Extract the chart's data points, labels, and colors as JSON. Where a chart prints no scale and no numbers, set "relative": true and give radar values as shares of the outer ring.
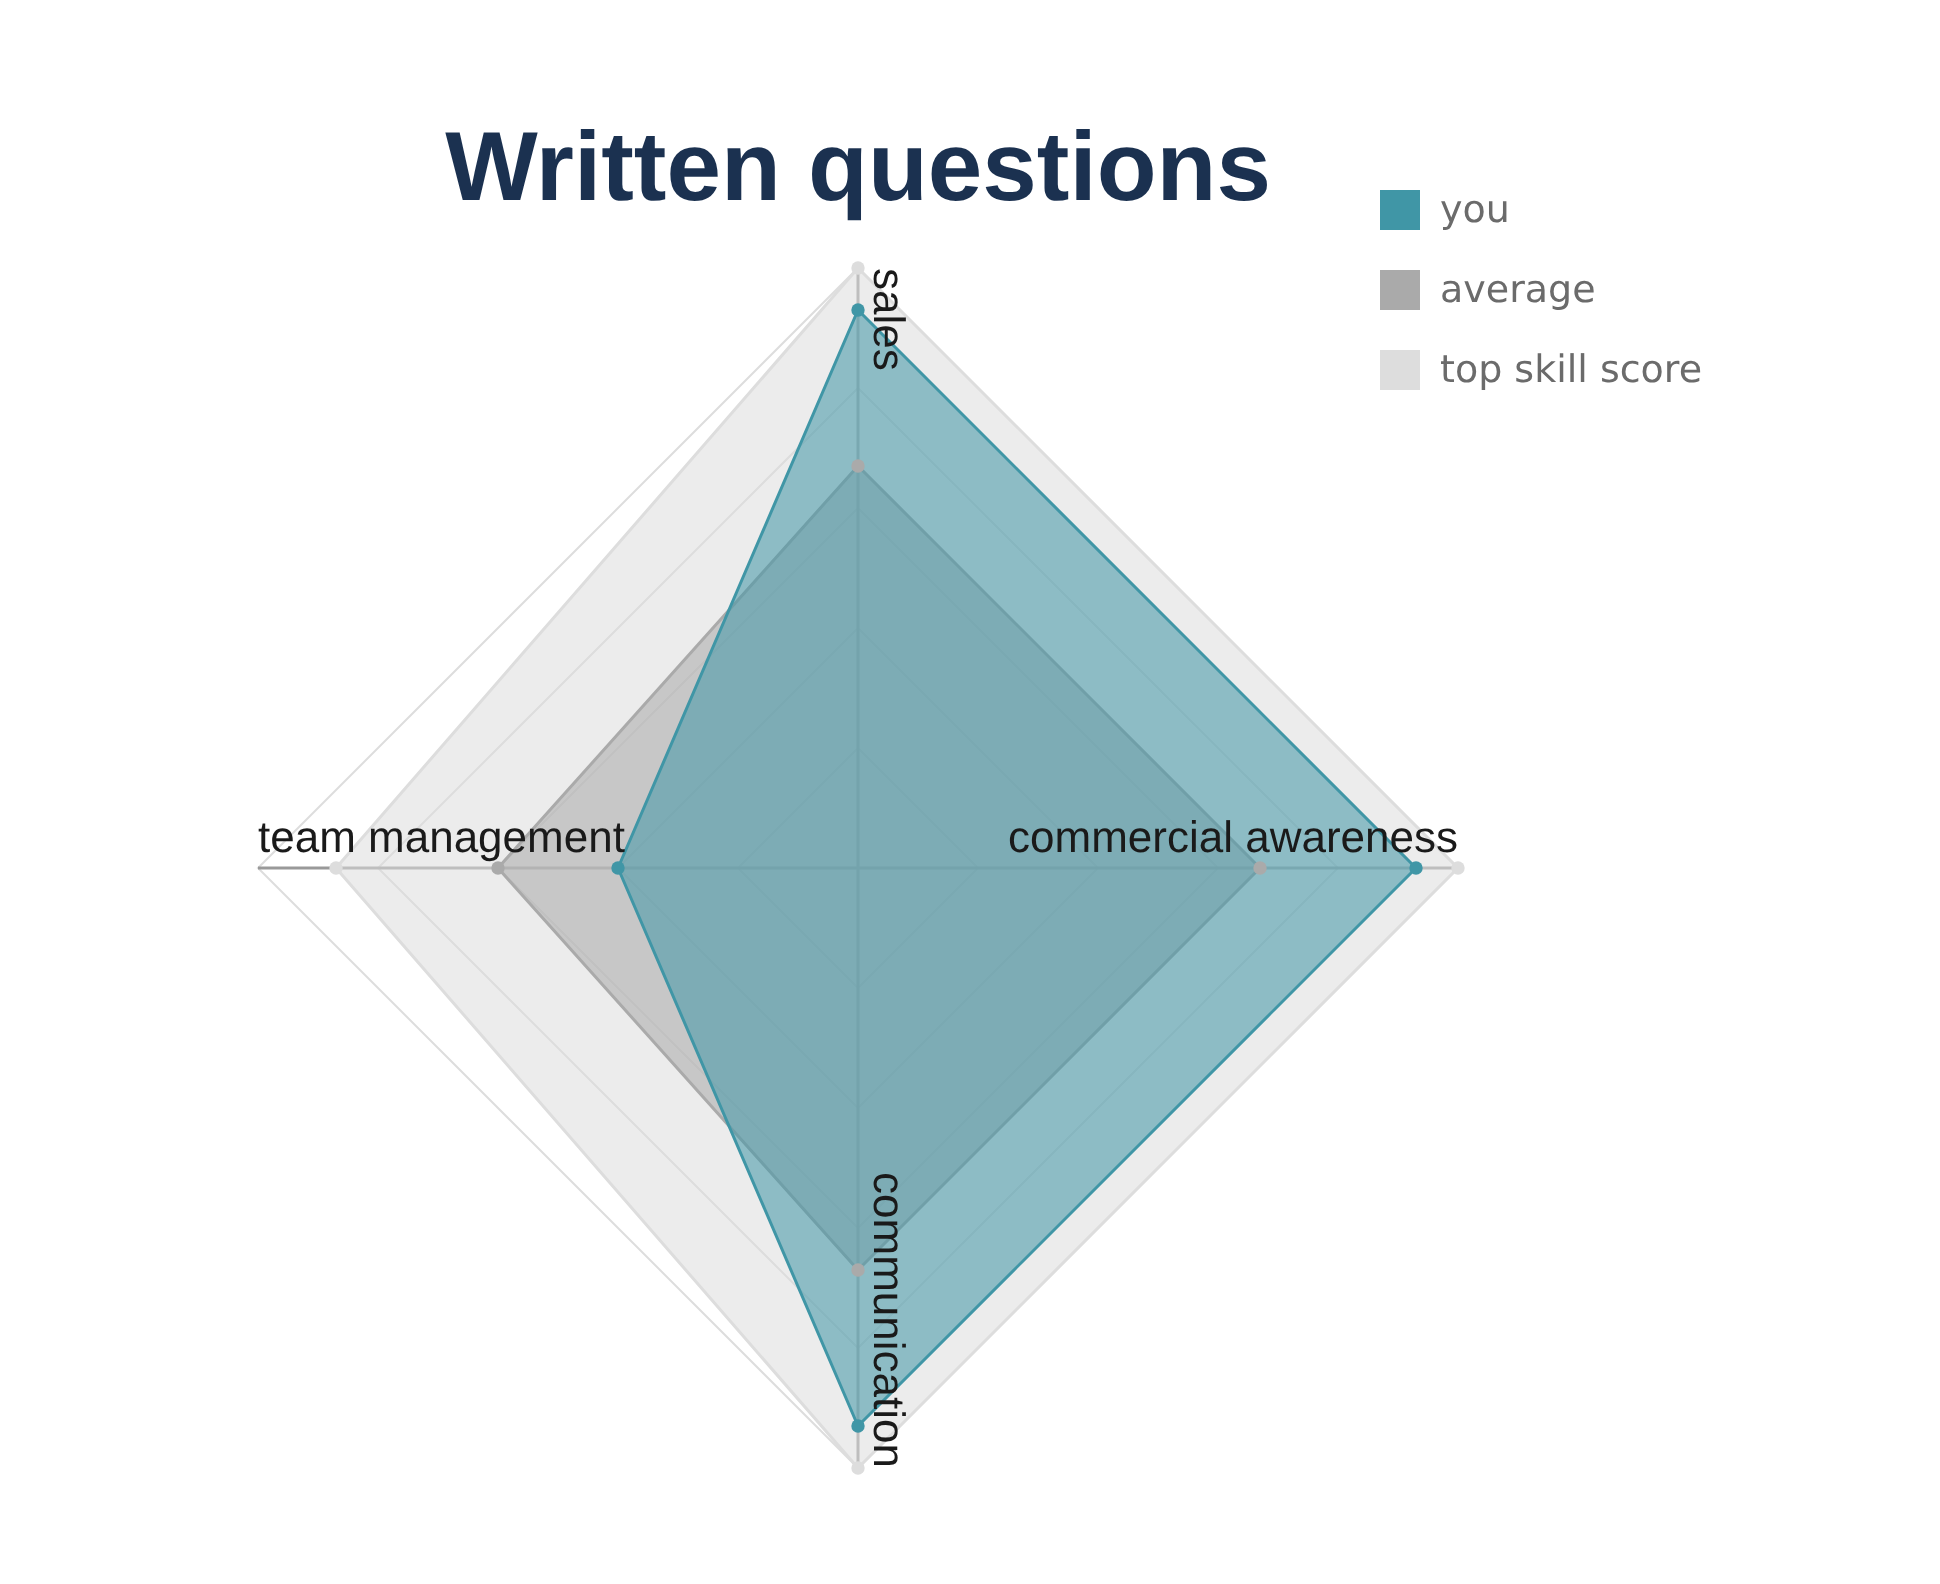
{
  "chart_data": {
    "type": "radar",
    "title": "Written questions",
    "categories": [
      "sales",
      "commercial awareness",
      "communication",
      "team management"
    ],
    "relative": true,
    "series": [
      {
        "name": "you",
        "color": "#4096a6",
        "values": [
          0.93,
          0.93,
          0.93,
          0.4
        ]
      },
      {
        "name": "average",
        "color": "#aaaaaa",
        "values": [
          0.67,
          0.67,
          0.67,
          0.6
        ]
      },
      {
        "name": "top skill score",
        "color": "#dddddd",
        "values": [
          1,
          1,
          1,
          0.87
        ]
      }
    ],
    "grid": true,
    "legend": "top right",
    "marker": "circle"
  }
}
